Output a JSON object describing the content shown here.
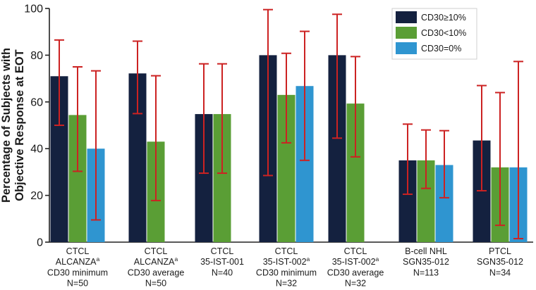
{
  "chart_data": {
    "type": "bar",
    "title": "",
    "xlabel": "",
    "ylabel": "Percentage of Subjects with Objective Response at EOT",
    "ylabel_lines": [
      "Percentage of Subjects with",
      "Objective Response at EOT"
    ],
    "ylim": [
      0,
      100
    ],
    "yticks": [
      0,
      20,
      40,
      60,
      80,
      100
    ],
    "grid": false,
    "legend_position": "top-right",
    "categories": [
      {
        "lines": [
          "CTCL",
          "ALCANZA",
          "CD30 minimum",
          "N=50"
        ],
        "superscript": "a"
      },
      {
        "lines": [
          "CTCL",
          "ALCANZA",
          "CD30 average",
          "N=50"
        ],
        "superscript": "a"
      },
      {
        "lines": [
          "CTCL",
          "35-IST-001",
          "",
          "N=40"
        ],
        "superscript": ""
      },
      {
        "lines": [
          "CTCL",
          "35-IST-002",
          "CD30 minimum",
          "N=32"
        ],
        "superscript": "a"
      },
      {
        "lines": [
          "CTCL",
          "35-IST-002",
          "CD30 average",
          "N=32"
        ],
        "superscript": "a"
      },
      {
        "lines": [
          "B-cell NHL",
          "SGN35-012",
          "",
          "N=113"
        ],
        "superscript": ""
      },
      {
        "lines": [
          "PTCL",
          "SGN35-012",
          "",
          "N=34"
        ],
        "superscript": ""
      }
    ],
    "series": [
      {
        "name": "CD30≥10%",
        "color": "#14213f",
        "values": [
          71,
          72.2,
          54.8,
          80,
          80,
          35,
          43.5
        ],
        "err_low": [
          50,
          55,
          29.5,
          28.5,
          44.5,
          20.5,
          22
        ],
        "err_high": [
          86.5,
          86,
          76.3,
          99.5,
          97.5,
          50.5,
          67
        ]
      },
      {
        "name": "CD30<10%",
        "color": "#5a9e35",
        "values": [
          54.4,
          43,
          54.8,
          63,
          59.3,
          35,
          32
        ],
        "err_low": [
          30.3,
          17.8,
          29.5,
          42.5,
          36.5,
          23,
          7.2
        ],
        "err_high": [
          75,
          71.2,
          76.3,
          80.8,
          79.4,
          48,
          64
        ]
      },
      {
        "name": "CD30=0%",
        "color": "#2f95d0",
        "values": [
          40,
          null,
          null,
          66.8,
          null,
          33,
          32
        ],
        "err_low": [
          9.5,
          null,
          null,
          35,
          null,
          19,
          1.5
        ],
        "err_high": [
          73.3,
          null,
          null,
          90.2,
          null,
          47.7,
          77.3
        ]
      }
    ]
  }
}
